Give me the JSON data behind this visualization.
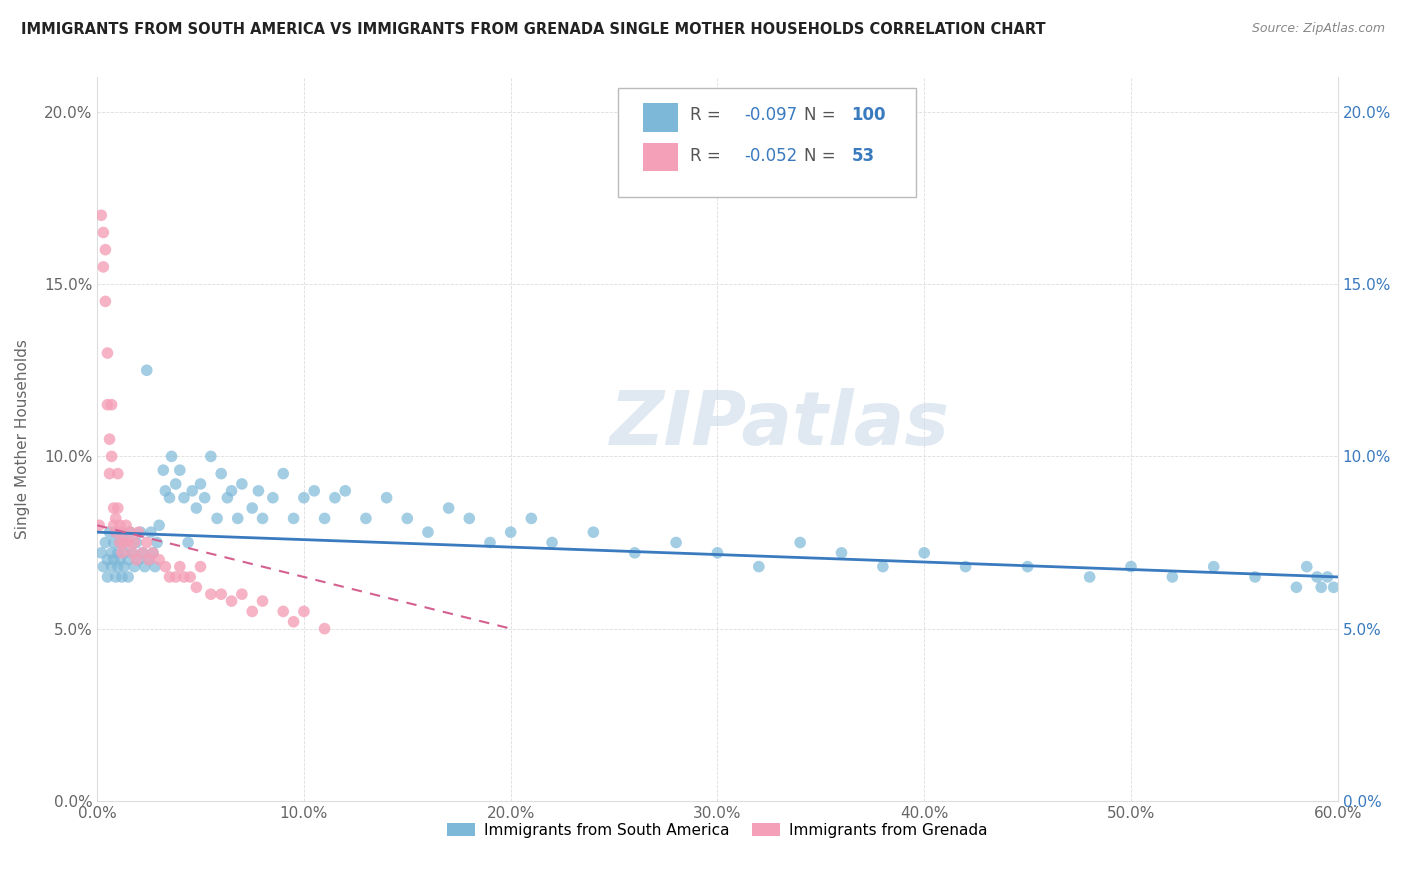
{
  "title": "IMMIGRANTS FROM SOUTH AMERICA VS IMMIGRANTS FROM GRENADA SINGLE MOTHER HOUSEHOLDS CORRELATION CHART",
  "source": "Source: ZipAtlas.com",
  "xlabel_bottom": [
    "Immigrants from South America",
    "Immigrants from Grenada"
  ],
  "ylabel": "Single Mother Households",
  "R_south_america": -0.097,
  "N_south_america": 100,
  "R_grenada": -0.052,
  "N_grenada": 53,
  "color_south_america": "#7db8d8",
  "color_grenada": "#f4a0b8",
  "color_line_south_america": "#3a7abf",
  "color_line_grenada": "#d46090",
  "xlim": [
    0.0,
    0.6
  ],
  "ylim": [
    0.0,
    0.21
  ],
  "x_ticks": [
    0.0,
    0.1,
    0.2,
    0.3,
    0.4,
    0.5,
    0.6
  ],
  "y_ticks": [
    0.0,
    0.05,
    0.1,
    0.15,
    0.2
  ],
  "watermark": "ZIPatlas",
  "sa_x": [
    0.002,
    0.003,
    0.004,
    0.005,
    0.005,
    0.006,
    0.007,
    0.007,
    0.008,
    0.008,
    0.009,
    0.009,
    0.01,
    0.01,
    0.011,
    0.011,
    0.012,
    0.012,
    0.013,
    0.013,
    0.014,
    0.015,
    0.015,
    0.016,
    0.017,
    0.018,
    0.019,
    0.02,
    0.021,
    0.022,
    0.023,
    0.024,
    0.025,
    0.026,
    0.027,
    0.028,
    0.029,
    0.03,
    0.032,
    0.033,
    0.035,
    0.036,
    0.038,
    0.04,
    0.042,
    0.044,
    0.046,
    0.048,
    0.05,
    0.052,
    0.055,
    0.058,
    0.06,
    0.063,
    0.065,
    0.068,
    0.07,
    0.075,
    0.078,
    0.08,
    0.085,
    0.09,
    0.095,
    0.1,
    0.105,
    0.11,
    0.115,
    0.12,
    0.13,
    0.14,
    0.15,
    0.16,
    0.17,
    0.18,
    0.19,
    0.2,
    0.21,
    0.22,
    0.24,
    0.26,
    0.28,
    0.3,
    0.32,
    0.34,
    0.36,
    0.38,
    0.4,
    0.42,
    0.45,
    0.48,
    0.5,
    0.52,
    0.54,
    0.56,
    0.58,
    0.585,
    0.59,
    0.592,
    0.595,
    0.598
  ],
  "sa_y": [
    0.072,
    0.068,
    0.075,
    0.07,
    0.065,
    0.078,
    0.072,
    0.068,
    0.075,
    0.07,
    0.065,
    0.078,
    0.072,
    0.068,
    0.075,
    0.07,
    0.065,
    0.078,
    0.072,
    0.068,
    0.075,
    0.07,
    0.065,
    0.078,
    0.072,
    0.068,
    0.075,
    0.07,
    0.078,
    0.072,
    0.068,
    0.125,
    0.07,
    0.078,
    0.072,
    0.068,
    0.075,
    0.08,
    0.096,
    0.09,
    0.088,
    0.1,
    0.092,
    0.096,
    0.088,
    0.075,
    0.09,
    0.085,
    0.092,
    0.088,
    0.1,
    0.082,
    0.095,
    0.088,
    0.09,
    0.082,
    0.092,
    0.085,
    0.09,
    0.082,
    0.088,
    0.095,
    0.082,
    0.088,
    0.09,
    0.082,
    0.088,
    0.09,
    0.082,
    0.088,
    0.082,
    0.078,
    0.085,
    0.082,
    0.075,
    0.078,
    0.082,
    0.075,
    0.078,
    0.072,
    0.075,
    0.072,
    0.068,
    0.075,
    0.072,
    0.068,
    0.072,
    0.068,
    0.068,
    0.065,
    0.068,
    0.065,
    0.068,
    0.065,
    0.062,
    0.068,
    0.065,
    0.062,
    0.065,
    0.062
  ],
  "gr_x": [
    0.001,
    0.002,
    0.003,
    0.003,
    0.004,
    0.004,
    0.005,
    0.005,
    0.006,
    0.006,
    0.007,
    0.007,
    0.008,
    0.008,
    0.009,
    0.009,
    0.01,
    0.01,
    0.011,
    0.011,
    0.012,
    0.012,
    0.013,
    0.014,
    0.015,
    0.016,
    0.017,
    0.018,
    0.019,
    0.02,
    0.022,
    0.024,
    0.025,
    0.027,
    0.03,
    0.033,
    0.035,
    0.038,
    0.04,
    0.042,
    0.045,
    0.048,
    0.05,
    0.055,
    0.06,
    0.065,
    0.07,
    0.075,
    0.08,
    0.09,
    0.095,
    0.1,
    0.11
  ],
  "gr_y": [
    0.08,
    0.17,
    0.165,
    0.155,
    0.16,
    0.145,
    0.13,
    0.115,
    0.105,
    0.095,
    0.115,
    0.1,
    0.085,
    0.08,
    0.082,
    0.078,
    0.095,
    0.085,
    0.075,
    0.08,
    0.078,
    0.072,
    0.075,
    0.08,
    0.075,
    0.078,
    0.072,
    0.075,
    0.07,
    0.078,
    0.072,
    0.075,
    0.07,
    0.072,
    0.07,
    0.068,
    0.065,
    0.065,
    0.068,
    0.065,
    0.065,
    0.062,
    0.068,
    0.06,
    0.06,
    0.058,
    0.06,
    0.055,
    0.058,
    0.055,
    0.052,
    0.055,
    0.05
  ]
}
